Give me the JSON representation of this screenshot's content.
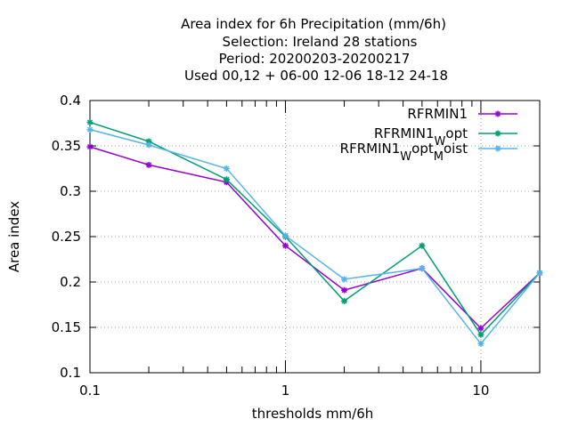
{
  "chart_data": {
    "type": "line",
    "title_lines": [
      "Area index  for 6h Precipitation (mm/6h)",
      "Selection: Ireland     28 stations",
      "Period: 20200203-20200217",
      "Used  00,12  + 06-00 12-06 18-12 24-18"
    ],
    "xlabel": "thresholds mm/6h",
    "ylabel": "Area index",
    "xscale": "log",
    "xlim": [
      0.1,
      20
    ],
    "ylim": [
      0.1,
      0.4
    ],
    "x_ticks": [
      {
        "value": 0.1,
        "label": "0.1"
      },
      {
        "value": 1,
        "label": "1"
      },
      {
        "value": 10,
        "label": "10"
      }
    ],
    "y_ticks": [
      {
        "value": 0.1,
        "label": "0.1"
      },
      {
        "value": 0.15,
        "label": "0.15"
      },
      {
        "value": 0.2,
        "label": "0.2"
      },
      {
        "value": 0.25,
        "label": "0.25"
      },
      {
        "value": 0.3,
        "label": "0.3"
      },
      {
        "value": 0.35,
        "label": "0.35"
      },
      {
        "value": 0.4,
        "label": "0.4"
      }
    ],
    "grid": true,
    "legend_position": "top-right",
    "x": [
      0.1,
      0.2,
      0.5,
      1,
      2,
      5,
      10,
      20
    ],
    "series": [
      {
        "name": "RFRMIN1",
        "name_parts": [
          {
            "text": "RFRMIN1"
          }
        ],
        "color": "#9400d3",
        "values": [
          0.349,
          0.329,
          0.31,
          0.24,
          0.191,
          0.215,
          0.149,
          0.21
        ]
      },
      {
        "name": "RFRMIN1_W opt",
        "name_parts": [
          {
            "text": "RFRMIN1"
          },
          {
            "text": "W",
            "sub": true
          },
          {
            "text": "opt"
          }
        ],
        "color": "#009e73",
        "values": [
          0.376,
          0.355,
          0.313,
          0.25,
          0.179,
          0.24,
          0.142,
          0.21
        ]
      },
      {
        "name": "RFRMIN1_W opt_M oist",
        "name_parts": [
          {
            "text": "RFRMIN1"
          },
          {
            "text": "W",
            "sub": true
          },
          {
            "text": "opt"
          },
          {
            "text": "M",
            "sub": true
          },
          {
            "text": "oist"
          }
        ],
        "color": "#56b4e9",
        "values": [
          0.368,
          0.351,
          0.325,
          0.251,
          0.203,
          0.215,
          0.132,
          0.21
        ]
      }
    ]
  }
}
